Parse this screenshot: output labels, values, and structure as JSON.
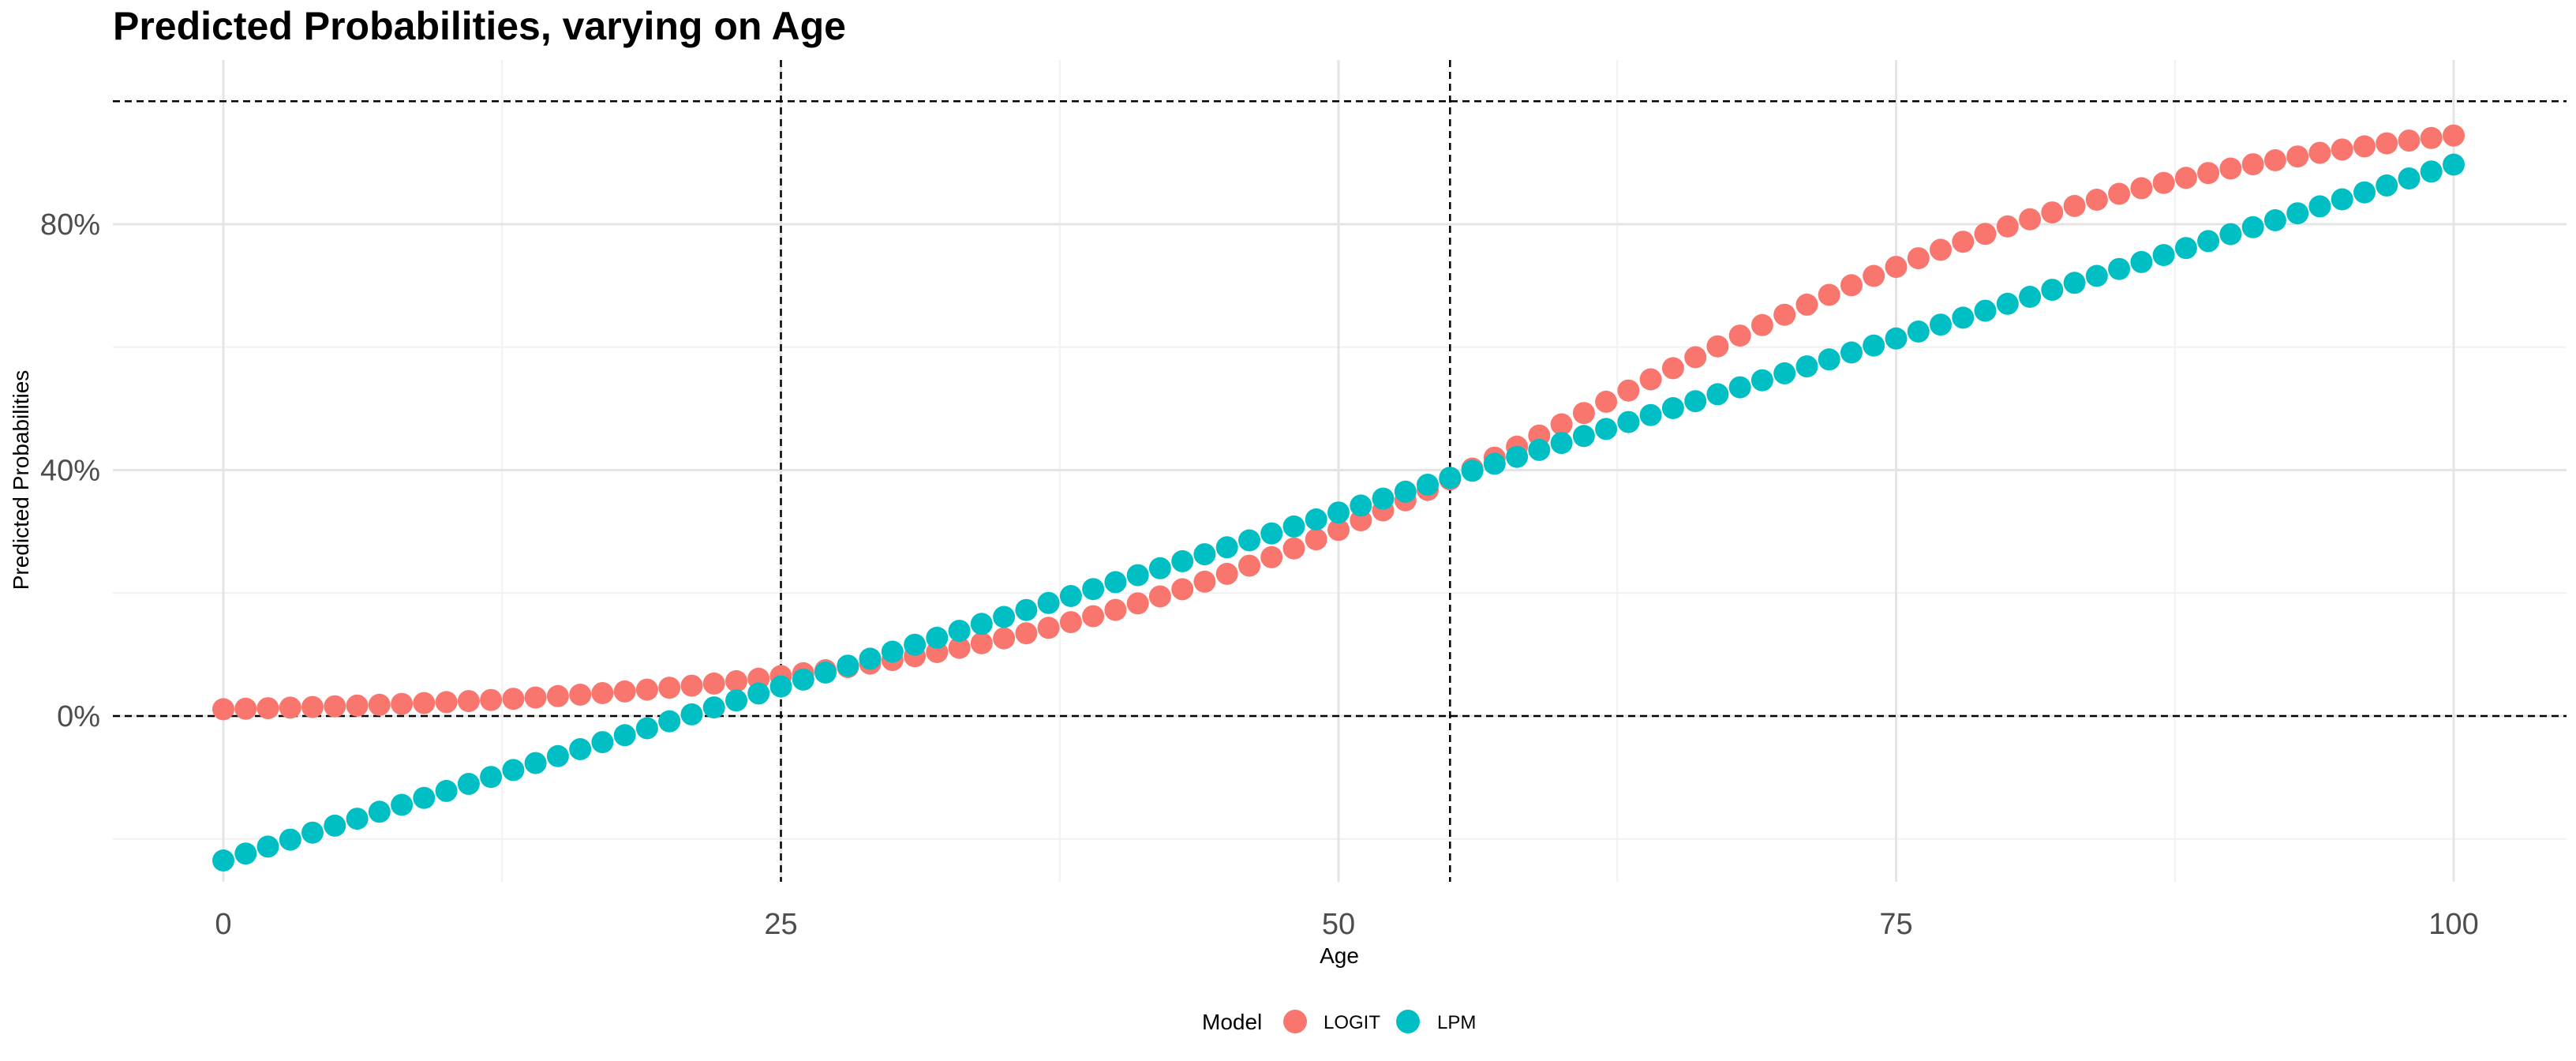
{
  "chart_data": {
    "type": "scatter",
    "title": "Predicted Probabilities, varying on Age",
    "xlabel": "Age",
    "ylabel": "Predicted Probabilities",
    "xlim": [
      -5,
      105
    ],
    "ylim": [
      -0.27,
      1.07
    ],
    "x_ticks": [
      0,
      25,
      50,
      75,
      100
    ],
    "x_tick_labels": [
      "0",
      "25",
      "50",
      "75",
      "100"
    ],
    "y_ticks": [
      0,
      0.4,
      0.8
    ],
    "y_tick_labels": [
      "0%",
      "40%",
      "80%"
    ],
    "y_minor_gridlines": [
      -0.2,
      0.2,
      0.6
    ],
    "x_minor_gridlines": [
      12.5,
      37.5,
      62.5,
      87.5
    ],
    "grid": true,
    "reference_lines": {
      "horizontal": [
        0,
        1
      ],
      "vertical": [
        25,
        55
      ],
      "style": "dashed"
    },
    "legend": {
      "title": "Model",
      "position": "bottom",
      "entries": [
        "LOGIT",
        "LPM"
      ]
    },
    "series": [
      {
        "name": "LOGIT",
        "color": "#F8766D",
        "model": "logistic",
        "x_range": [
          0,
          100
        ],
        "x_step": 1,
        "y_at_x0": 0.011,
        "y_at_x25": 0.063,
        "y_at_x50": 0.31,
        "y_at_x55": 0.385,
        "y_at_x75": 0.73,
        "y_at_x100": 0.945
      },
      {
        "name": "LPM",
        "color": "#00BFC4",
        "model": "linear",
        "x_range": [
          0,
          100
        ],
        "x_step": 1,
        "y_at_x0": -0.235,
        "y_at_x100": 0.897
      }
    ]
  }
}
